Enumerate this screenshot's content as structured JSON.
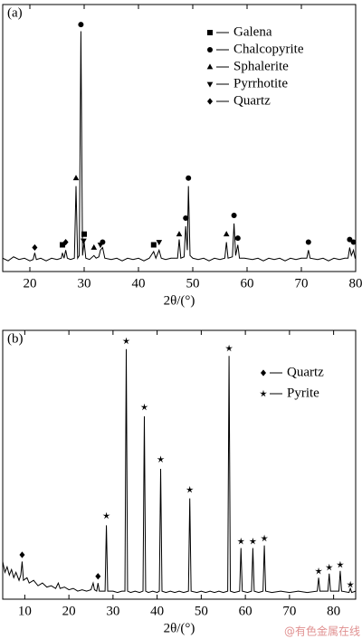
{
  "chart_data": [
    {
      "type": "line",
      "panel_label": "(a)",
      "xlabel": "2θ/(°)",
      "xlim": [
        15,
        80
      ],
      "xticks": [
        20,
        30,
        40,
        50,
        60,
        70,
        80
      ],
      "ylim": [
        0,
        100
      ],
      "x": [
        15,
        16,
        17,
        18,
        19,
        20,
        20.6,
        20.9,
        21.2,
        22,
        23,
        24,
        25,
        25.8,
        26.0,
        26.3,
        26.6,
        26.9,
        27.5,
        28.2,
        28.5,
        28.8,
        29.1,
        29.4,
        29.7,
        30.0,
        30.3,
        31,
        31.8,
        32.2,
        32.7,
        33.0,
        33.4,
        33.8,
        35,
        36,
        37,
        38,
        39,
        40,
        41,
        42,
        42.8,
        43.2,
        43.8,
        44.2,
        45,
        46,
        47.2,
        47.5,
        47.8,
        48.4,
        48.7,
        49.0,
        49.2,
        49.5,
        50,
        51,
        52,
        53,
        54,
        55,
        55.9,
        56.2,
        56.5,
        57.3,
        57.6,
        57.9,
        58.3,
        58.6,
        59.5,
        61,
        62,
        63,
        64,
        65,
        66,
        67,
        68,
        69,
        70,
        71.0,
        71.3,
        71.6,
        73,
        74,
        75,
        76,
        77,
        78,
        78.6,
        78.9,
        79.2,
        79.6,
        79.9,
        80
      ],
      "series": [
        {
          "color": "#000000",
          "values": [
            5,
            4,
            5.5,
            4.5,
            5,
            4,
            4.5,
            7,
            4.5,
            5,
            4,
            5,
            4.5,
            5,
            7,
            5,
            8,
            5,
            4.5,
            5,
            32,
            5,
            6,
            90,
            6,
            11,
            5,
            4.5,
            6,
            5,
            5.5,
            8,
            9,
            5,
            4.5,
            5,
            4,
            5,
            4.5,
            5,
            4,
            5,
            7.5,
            5,
            8,
            5,
            4.5,
            5,
            5,
            12,
            5,
            5.5,
            17,
            8,
            32,
            6,
            5,
            4.5,
            5,
            4,
            5,
            4.5,
            5,
            11,
            5,
            5.5,
            18,
            6,
            10,
            5,
            5,
            4.5,
            5,
            4,
            5,
            4.5,
            5,
            4,
            5,
            4.5,
            5,
            5,
            8,
            5,
            4.5,
            5,
            4,
            5,
            4.5,
            5,
            5,
            9,
            6,
            8,
            5,
            5
          ]
        }
      ],
      "markers": [
        {
          "name": "Galena",
          "symbol": "square",
          "x": [
            26.0,
            30.0,
            42.8
          ],
          "values": [
            10,
            14,
            10
          ]
        },
        {
          "name": "Chalcopyrite",
          "symbol": "circle",
          "x": [
            29.4,
            33.4,
            48.7,
            49.2,
            57.6,
            58.3,
            71.3,
            78.9,
            79.6
          ],
          "values": [
            92.5,
            11,
            20,
            35,
            21,
            12.5,
            11,
            12,
            11
          ]
        },
        {
          "name": "Sphalerite",
          "symbol": "triangle",
          "x": [
            28.5,
            31.8,
            47.5,
            56.2
          ],
          "values": [
            35,
            9,
            14,
            14
          ]
        },
        {
          "name": "Pyrrhotite",
          "symbol": "triangle-down",
          "x": [
            29.9,
            33.0,
            43.8
          ],
          "values": [
            11.5,
            10,
            11
          ]
        },
        {
          "name": "Quartz",
          "symbol": "diamond",
          "x": [
            20.9,
            26.6
          ],
          "values": [
            9,
            11
          ]
        }
      ]
    },
    {
      "type": "line",
      "panel_label": "(b)",
      "xlabel": "2θ/(°)",
      "xlim": [
        5,
        85
      ],
      "xticks": [
        10,
        20,
        30,
        40,
        50,
        60,
        70,
        80
      ],
      "ylim": [
        0,
        100
      ],
      "x": [
        5,
        5.5,
        6,
        6.5,
        7,
        7.5,
        8,
        8.7,
        9.1,
        9.4,
        9.7,
        10.5,
        11,
        12,
        13,
        14,
        15,
        16,
        17,
        17.6,
        18,
        19,
        20,
        21,
        22,
        23,
        24,
        25,
        25.5,
        25.8,
        26.3,
        26.6,
        26.9,
        27.5,
        28.2,
        28.5,
        28.8,
        30,
        31,
        32,
        32.7,
        33.0,
        33.3,
        34,
        35,
        36,
        36.8,
        37.1,
        37.4,
        38,
        39,
        40,
        40.5,
        40.8,
        41.1,
        42,
        43,
        44,
        45,
        46,
        47.1,
        47.4,
        47.7,
        49,
        50,
        51,
        52,
        53,
        54,
        55,
        56.0,
        56.3,
        56.6,
        57.5,
        58.7,
        59.0,
        59.3,
        60.5,
        61.4,
        61.7,
        62.0,
        63,
        64.0,
        64.3,
        64.6,
        66,
        68,
        70,
        72,
        74,
        76.3,
        76.6,
        76.9,
        78.7,
        79.0,
        79.3,
        81.2,
        81.5,
        81.8,
        83.5,
        83.8,
        84.1,
        85
      ],
      "series": [
        {
          "color": "#000000",
          "values": [
            14,
            10,
            12,
            9,
            11,
            8,
            10,
            7,
            9,
            14,
            7,
            8,
            6,
            7,
            5,
            6,
            4.5,
            5,
            4,
            6,
            4,
            4.5,
            3.5,
            4,
            3,
            3.5,
            3,
            3.5,
            6,
            3.5,
            3,
            6,
            3,
            3,
            3,
            27.5,
            3,
            3,
            2.5,
            3,
            3,
            93,
            3,
            2.5,
            3,
            2.5,
            3,
            68,
            3,
            2.5,
            3,
            2.5,
            3,
            48.5,
            3,
            2.5,
            3,
            2.5,
            3,
            2.5,
            3,
            37.5,
            3,
            2.5,
            3,
            2.5,
            3,
            2.5,
            3,
            2.5,
            3,
            90.5,
            3,
            2.5,
            3,
            19,
            3,
            2.5,
            3,
            19,
            3,
            2.5,
            3,
            20,
            3,
            2.5,
            3,
            2.5,
            3,
            2.5,
            3,
            8,
            3,
            3,
            9.5,
            3,
            3,
            10.5,
            3,
            2.5,
            4,
            2.5,
            3
          ]
        }
      ],
      "markers": [
        {
          "name": "Quartz",
          "symbol": "diamond",
          "x": [
            9.4,
            26.6
          ],
          "values": [
            16.5,
            8.5
          ]
        },
        {
          "name": "Pyrite",
          "symbol": "star",
          "x": [
            28.5,
            33.0,
            37.1,
            40.8,
            47.4,
            56.3,
            59.0,
            61.7,
            64.3,
            76.6,
            79.0,
            81.5,
            83.8
          ],
          "values": [
            31,
            96,
            71.4,
            52,
            40.7,
            93.3,
            21.5,
            21.5,
            22.6,
            10.4,
            11.8,
            12.8,
            5.4
          ]
        }
      ]
    }
  ],
  "watermark": "@有色金属在线"
}
